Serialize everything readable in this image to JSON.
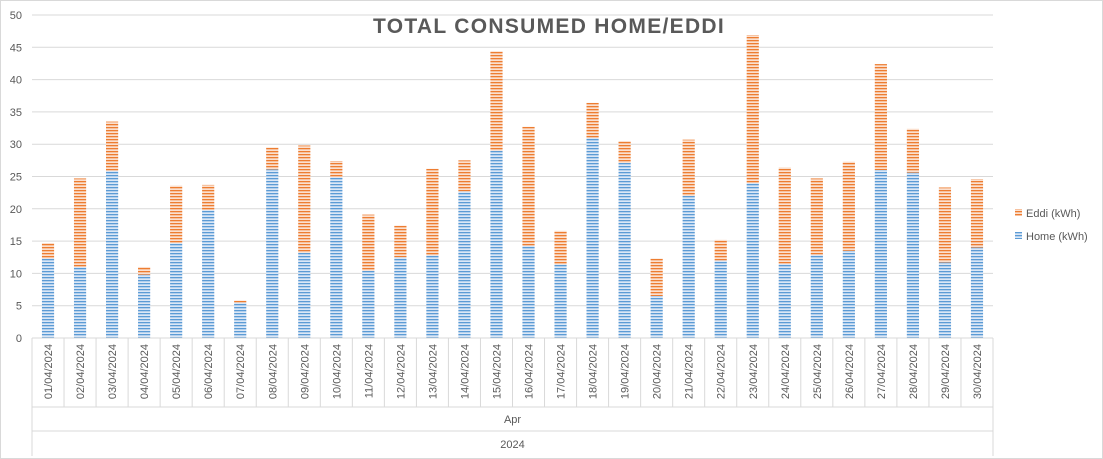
{
  "chart_data": {
    "type": "bar",
    "stacked": true,
    "title": "TOTAL CONSUMED HOME/EDDI",
    "categories": [
      "01/04/2024",
      "02/04/2024",
      "03/04/2024",
      "04/04/2024",
      "05/04/2024",
      "06/04/2024",
      "07/04/2024",
      "08/04/2024",
      "09/04/2024",
      "10/04/2024",
      "11/04/2024",
      "12/04/2024",
      "13/04/2024",
      "14/04/2024",
      "15/04/2024",
      "16/04/2024",
      "17/04/2024",
      "18/04/2024",
      "19/04/2024",
      "20/04/2024",
      "21/04/2024",
      "22/04/2024",
      "23/04/2024",
      "24/04/2024",
      "25/04/2024",
      "26/04/2024",
      "27/04/2024",
      "28/04/2024",
      "29/04/2024",
      "30/04/2024"
    ],
    "category_groups": [
      {
        "level": 1,
        "label": "Apr"
      },
      {
        "level": 2,
        "label": "2024"
      }
    ],
    "series": [
      {
        "name": "Home (kWh)",
        "color": "#5b9bd5",
        "values": [
          12.3,
          11.0,
          25.9,
          9.8,
          14.7,
          19.8,
          5.5,
          26.1,
          13.2,
          24.9,
          10.4,
          12.5,
          12.8,
          22.7,
          29.0,
          14.3,
          11.4,
          31.0,
          27.1,
          6.5,
          22.0,
          12.0,
          24.0,
          11.5,
          12.9,
          13.5,
          26.0,
          25.6,
          11.7,
          14.0
        ]
      },
      {
        "name": "Eddi (kWh)",
        "color": "#ed7d31",
        "values": [
          2.4,
          13.7,
          7.6,
          1.2,
          8.9,
          3.9,
          0.3,
          3.4,
          16.6,
          2.5,
          8.7,
          4.9,
          13.4,
          4.8,
          15.4,
          18.4,
          5.2,
          5.4,
          3.4,
          5.8,
          8.7,
          3.2,
          22.9,
          14.9,
          11.8,
          13.8,
          16.4,
          6.8,
          11.6,
          10.6
        ]
      }
    ],
    "ylim": [
      0,
      50
    ],
    "yticks": [
      0,
      5,
      10,
      15,
      20,
      25,
      30,
      35,
      40,
      45,
      50
    ],
    "grid": true,
    "legend_position": "right"
  }
}
